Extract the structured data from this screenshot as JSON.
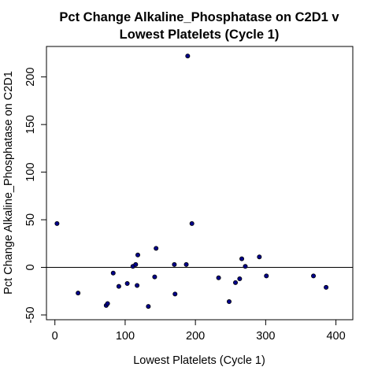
{
  "chart_data": {
    "type": "scatter",
    "title": [
      "Pct Change Alkaline_Phosphatase on C2D1 v",
      "Lowest Platelets (Cycle 1)"
    ],
    "xlabel": "Lowest Platelets (Cycle 1)",
    "ylabel": "Pct Change Alkaline_Phosphatase on C2D1",
    "xlim": [
      -12,
      424
    ],
    "ylim": [
      -55,
      232
    ],
    "xticks": [
      0,
      100,
      200,
      300,
      400
    ],
    "yticks": [
      -50,
      0,
      50,
      100,
      150,
      200
    ],
    "hline": 0,
    "grid": false,
    "colors": {
      "point_fill": "#00008b",
      "point_stroke": "#000000",
      "axis": "#000000"
    },
    "points": [
      {
        "x": 3,
        "y": 46
      },
      {
        "x": 33,
        "y": -27
      },
      {
        "x": 73,
        "y": -40
      },
      {
        "x": 75,
        "y": -38
      },
      {
        "x": 83,
        "y": -6
      },
      {
        "x": 91,
        "y": -20
      },
      {
        "x": 103,
        "y": -17
      },
      {
        "x": 111,
        "y": 1
      },
      {
        "x": 115,
        "y": 3
      },
      {
        "x": 117,
        "y": -19
      },
      {
        "x": 118,
        "y": 13
      },
      {
        "x": 133,
        "y": -41
      },
      {
        "x": 142,
        "y": -10
      },
      {
        "x": 144,
        "y": 20
      },
      {
        "x": 170,
        "y": 3
      },
      {
        "x": 171,
        "y": -28
      },
      {
        "x": 187,
        "y": 3
      },
      {
        "x": 189,
        "y": 222
      },
      {
        "x": 195,
        "y": 46
      },
      {
        "x": 233,
        "y": -11
      },
      {
        "x": 248,
        "y": -36
      },
      {
        "x": 257,
        "y": -16
      },
      {
        "x": 263,
        "y": -12
      },
      {
        "x": 266,
        "y": 9
      },
      {
        "x": 271,
        "y": 1
      },
      {
        "x": 291,
        "y": 11
      },
      {
        "x": 301,
        "y": -9
      },
      {
        "x": 368,
        "y": -9
      },
      {
        "x": 386,
        "y": -21
      }
    ]
  }
}
